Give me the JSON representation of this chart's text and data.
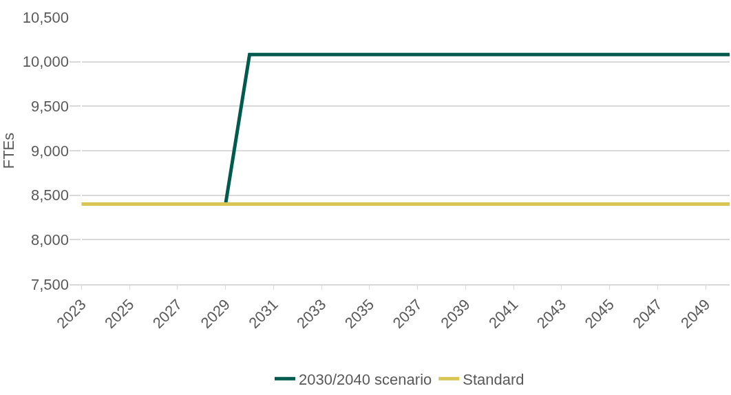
{
  "chart_data": {
    "type": "line",
    "ylabel": "FTEs",
    "categories": [
      "2023",
      null,
      "2025",
      null,
      "2027",
      null,
      "2029",
      null,
      "2031",
      null,
      "2033",
      null,
      "2035",
      null,
      "2037",
      null,
      "2039",
      null,
      "2041",
      null,
      "2043",
      null,
      "2045",
      null,
      "2047",
      null,
      "2049",
      null
    ],
    "series": [
      {
        "name": "2030/2040 scenario",
        "color": "#005a4e",
        "values": [
          null,
          null,
          null,
          null,
          null,
          null,
          8400,
          10080,
          10080,
          10080,
          10080,
          10080,
          10080,
          10080,
          10080,
          10080,
          10080,
          10080,
          10080,
          10080,
          10080,
          10080,
          10080,
          10080,
          10080,
          10080,
          10080,
          10080
        ]
      },
      {
        "name": "Standard",
        "color": "#d9c553",
        "values": [
          8400,
          8400,
          8400,
          8400,
          8400,
          8400,
          8400,
          8400,
          8400,
          8400,
          8400,
          8400,
          8400,
          8400,
          8400,
          8400,
          8400,
          8400,
          8400,
          8400,
          8400,
          8400,
          8400,
          8400,
          8400,
          8400,
          8400,
          8400
        ]
      }
    ],
    "ylim": [
      7500,
      10500
    ],
    "yticks": [
      {
        "value": 7500,
        "label": "7,500"
      },
      {
        "value": 8000,
        "label": "8,000"
      },
      {
        "value": 8500,
        "label": "8,500"
      },
      {
        "value": 9000,
        "label": "9,000"
      },
      {
        "value": 9500,
        "label": "9,500"
      },
      {
        "value": 10000,
        "label": "10,000"
      },
      {
        "value": 10500,
        "label": "10,500"
      }
    ],
    "grid": "y",
    "legend": "bottom",
    "marker": "none",
    "line_style": "solid"
  }
}
